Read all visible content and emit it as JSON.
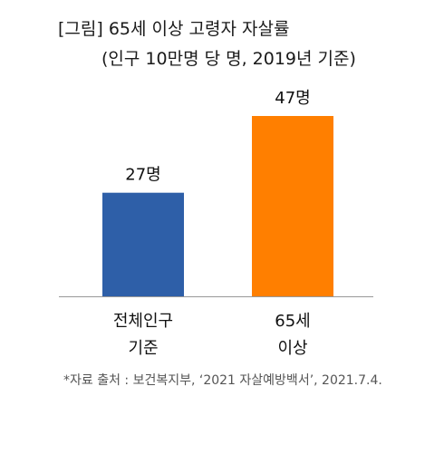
{
  "title": {
    "line1": "[그림] 65세 이상 고령자 자살률",
    "line2": "(인구 10만명 당 명, 2019년 기준)"
  },
  "source": "*자료  출처 : 보건복지부, ‘2021 자살예방백서’, 2021.7.4.",
  "colors": {
    "series": [
      "#2e5fa8",
      "#ff7f00"
    ],
    "axis": "#999999"
  },
  "chart_data": {
    "type": "bar",
    "categories": [
      [
        "전체인구",
        "기준"
      ],
      [
        "65세",
        "이상"
      ]
    ],
    "values": [
      27,
      47
    ],
    "data_labels": [
      "27명",
      "47명"
    ],
    "ylim": [
      0,
      50
    ],
    "grid": false,
    "legend": "none"
  }
}
